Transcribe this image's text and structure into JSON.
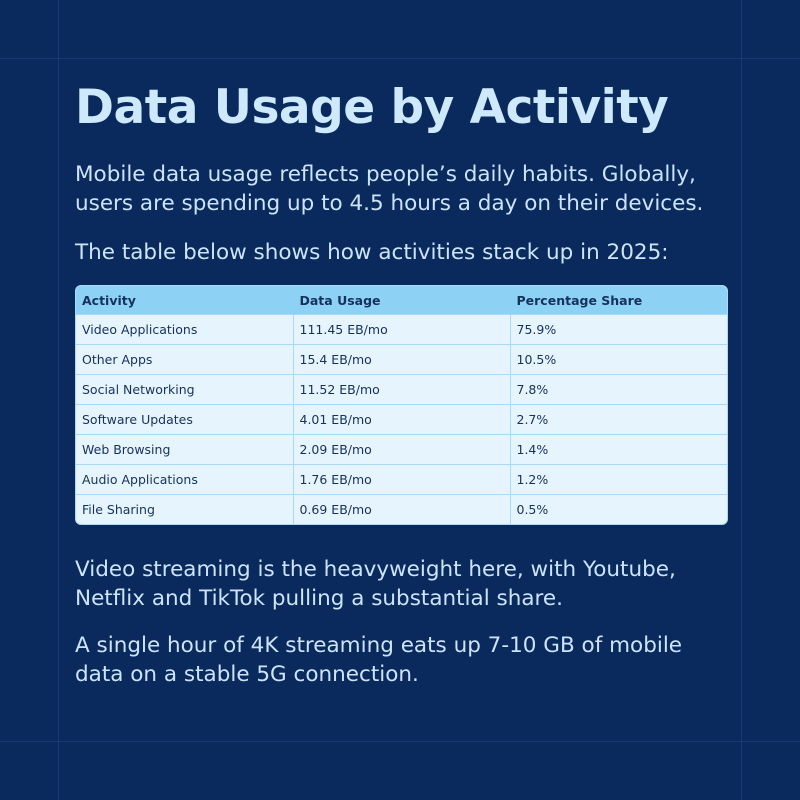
{
  "title": "Data Usage by Activity",
  "intro": "Mobile data usage reflects people’s daily habits. Globally, users are spending up to 4.5 hours a day on their devices.",
  "lead_in": "The table below shows how activities stack up in 2025:",
  "table": {
    "headers": [
      "Activity",
      "Data Usage",
      "Percentage Share"
    ],
    "rows": [
      [
        "Video Applications",
        "111.45 EB/mo",
        "75.9%"
      ],
      [
        "Other Apps",
        "15.4 EB/mo",
        "10.5%"
      ],
      [
        "Social Networking",
        "11.52 EB/mo",
        "7.8%"
      ],
      [
        "Software Updates",
        "4.01 EB/mo",
        "2.7%"
      ],
      [
        "Web Browsing",
        "2.09 EB/mo",
        "1.4%"
      ],
      [
        "Audio Applications",
        "1.76 EB/mo",
        "1.2%"
      ],
      [
        "File Sharing",
        "0.69 EB/mo",
        "0.5%"
      ]
    ]
  },
  "note_1": "Video streaming is the heavyweight here, with Youtube, Netflix and TikTok pulling a substantial share.",
  "note_2": "A single hour of 4K streaming eats up 7-10 GB of mobile data on a stable 5G connection.",
  "colors": {
    "background": "#0a2a5e",
    "title": "#cde9fb",
    "table_header": "#8dd2f4",
    "table_body": "#e6f4fd"
  }
}
